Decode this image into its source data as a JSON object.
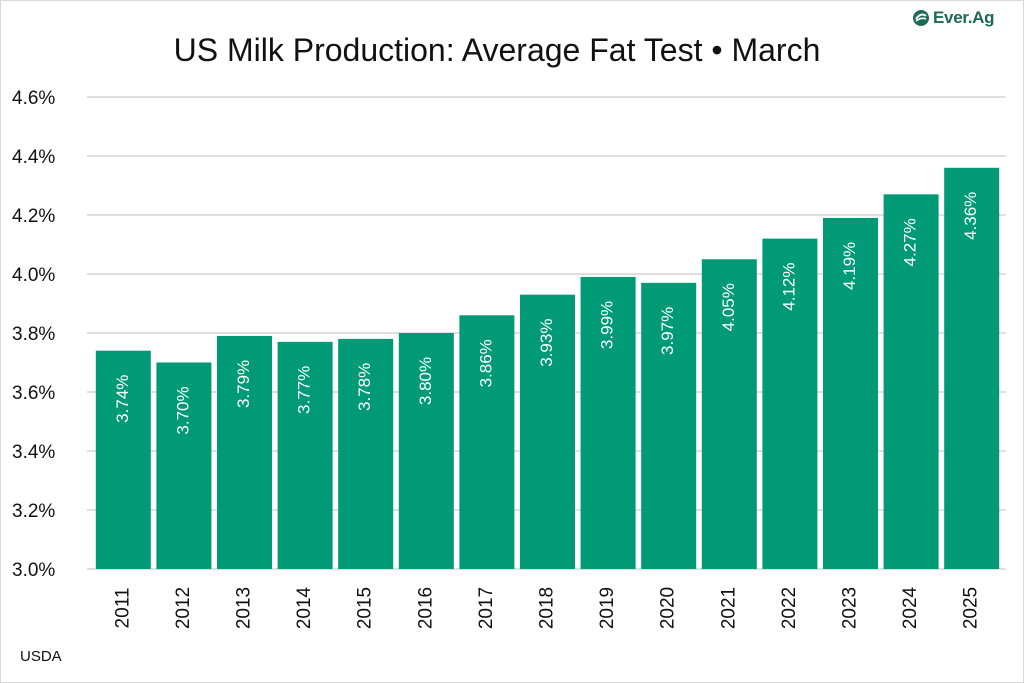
{
  "title": "US Milk Production: Average Fat Test • March",
  "source": "USDA",
  "logo": {
    "text": "Ever.Ag",
    "icon": "ever-ag-leaf-icon",
    "color": "#1d6b52"
  },
  "chart_data": {
    "type": "bar",
    "title": "US Milk Production: Average Fat Test • March",
    "xlabel": "",
    "ylabel": "",
    "categories": [
      "2011",
      "2012",
      "2013",
      "2014",
      "2015",
      "2016",
      "2017",
      "2018",
      "2019",
      "2020",
      "2021",
      "2022",
      "2023",
      "2024",
      "2025"
    ],
    "values": [
      3.74,
      3.7,
      3.79,
      3.77,
      3.78,
      3.8,
      3.86,
      3.93,
      3.99,
      3.97,
      4.05,
      4.12,
      4.19,
      4.27,
      4.36
    ],
    "data_labels": [
      "3.74%",
      "3.70%",
      "3.79%",
      "3.77%",
      "3.78%",
      "3.80%",
      "3.86%",
      "3.93%",
      "3.99%",
      "3.97%",
      "4.05%",
      "4.12%",
      "4.19%",
      "4.27%",
      "4.36%"
    ],
    "ylim": [
      3.0,
      4.6
    ],
    "y_ticks": [
      3.0,
      3.2,
      3.4,
      3.6,
      3.8,
      4.0,
      4.2,
      4.4,
      4.6
    ],
    "y_tick_labels": [
      "3.0%",
      "3.2%",
      "3.4%",
      "3.6%",
      "3.8%",
      "4.0%",
      "4.2%",
      "4.4%",
      "4.6%"
    ],
    "grid": true,
    "legend": "none",
    "bar_color": "#009a76",
    "gridline_color": "#bfbfbf"
  }
}
